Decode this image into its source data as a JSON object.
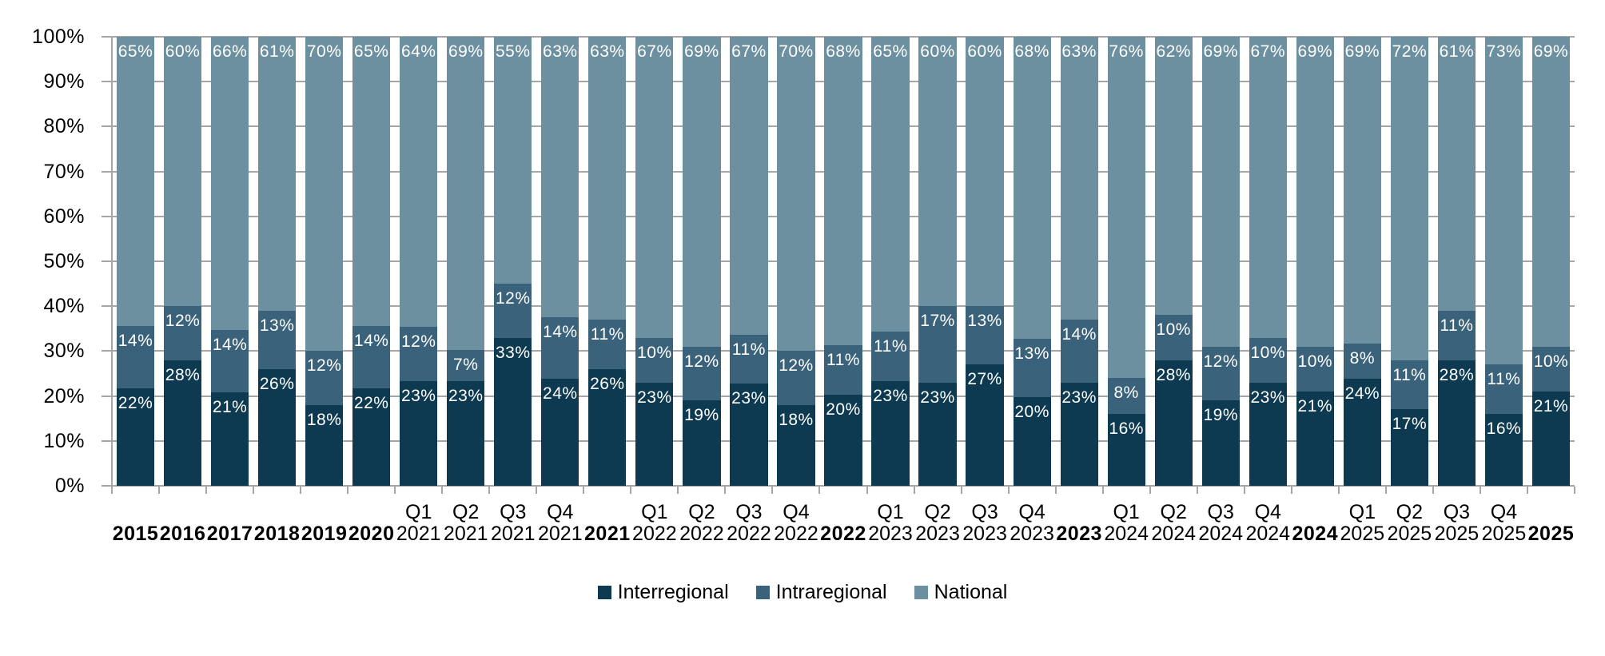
{
  "chart_data": {
    "type": "bar",
    "stacked": true,
    "percent_stacked": true,
    "title": "",
    "xlabel": "",
    "ylabel": "",
    "ylim": [
      0,
      100
    ],
    "grid": true,
    "legend_position": "bottom",
    "value_suffix": "%",
    "y_ticks": [
      "100%",
      "90%",
      "80%",
      "70%",
      "60%",
      "50%",
      "40%",
      "30%",
      "20%",
      "10%",
      "0%"
    ],
    "categories": [
      "2015",
      "2016",
      "2017",
      "2018",
      "2019",
      "2020",
      "Q1 2021",
      "Q2 2021",
      "Q3 2021",
      "Q4 2021",
      "2021",
      "Q1 2022",
      "Q2 2022",
      "Q3 2022",
      "Q4 2022",
      "2022",
      "Q1 2023",
      "Q2 2023",
      "Q3 2023",
      "Q4 2023",
      "2023",
      "Q1 2024",
      "Q2 2024",
      "Q3 2024",
      "Q4 2024",
      "2024",
      "Q1 2025",
      "Q2 2025",
      "Q3 2025",
      "Q4 2025",
      "2025"
    ],
    "series": [
      {
        "name": "Interregional",
        "color": "#0d3a50",
        "values": [
          22,
          28,
          21,
          26,
          18,
          22,
          23,
          23,
          33,
          24,
          26,
          23,
          19,
          23,
          18,
          20,
          23,
          23,
          27,
          20,
          23,
          16,
          28,
          19,
          23,
          21,
          24,
          17,
          28,
          16,
          21
        ]
      },
      {
        "name": "Intraregional",
        "color": "#3a627a",
        "values": [
          14,
          12,
          14,
          13,
          12,
          14,
          12,
          7,
          12,
          14,
          11,
          10,
          12,
          11,
          12,
          11,
          11,
          17,
          13,
          13,
          14,
          8,
          10,
          12,
          10,
          10,
          8,
          11,
          11,
          11,
          10
        ]
      },
      {
        "name": "National",
        "color": "#6d90a0",
        "values": [
          65,
          60,
          66,
          61,
          70,
          65,
          64,
          69,
          55,
          63,
          63,
          67,
          69,
          67,
          70,
          68,
          65,
          60,
          60,
          68,
          63,
          76,
          62,
          69,
          67,
          69,
          69,
          72,
          61,
          73,
          69
        ]
      }
    ],
    "style_colors": {
      "gridline": "#a6a6a6",
      "axis": "#a6a6a6",
      "bar_label_text": "#ffffff",
      "axis_text": "#000000",
      "background": "#ffffff"
    }
  }
}
